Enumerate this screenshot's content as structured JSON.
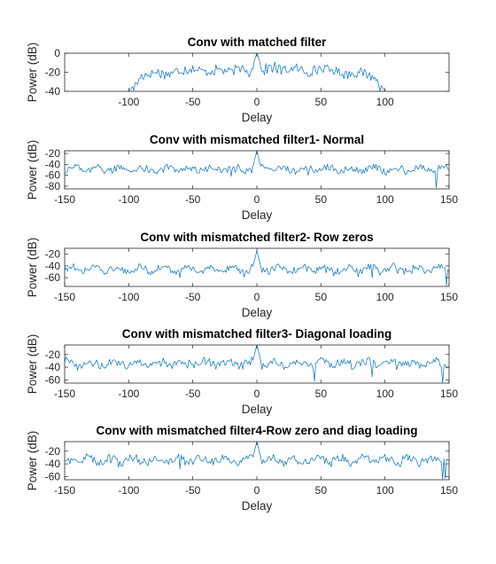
{
  "chart_data": [
    {
      "type": "line",
      "title": "Conv with matched filter",
      "xlabel": "Delay",
      "ylabel": "Power (dB)",
      "xlim": [
        -150,
        150
      ],
      "ylim": [
        -40,
        0
      ],
      "xticks": [
        -100,
        -50,
        0,
        50,
        100
      ],
      "yticks": [
        0,
        -20,
        -40
      ],
      "series": [
        {
          "x_range": [
            -100,
            100
          ],
          "peak_db": 0,
          "sidelobe_db": -22,
          "floor_db": -40,
          "points": [
            [
              -100,
              -40
            ],
            [
              -95,
              -32
            ],
            [
              -90,
              -22
            ],
            [
              -80,
              -18
            ],
            [
              -70,
              -20
            ],
            [
              -60,
              -16
            ],
            [
              -50,
              -14
            ],
            [
              -40,
              -18
            ],
            [
              -30,
              -15
            ],
            [
              -20,
              -18
            ],
            [
              -10,
              -12
            ],
            [
              -5,
              -20
            ],
            [
              0,
              0
            ],
            [
              5,
              -18
            ],
            [
              10,
              -12
            ],
            [
              20,
              -16
            ],
            [
              30,
              -14
            ],
            [
              40,
              -18
            ],
            [
              50,
              -14
            ],
            [
              60,
              -16
            ],
            [
              70,
              -20
            ],
            [
              80,
              -18
            ],
            [
              90,
              -22
            ],
            [
              95,
              -30
            ],
            [
              100,
              -40
            ]
          ]
        }
      ]
    },
    {
      "type": "line",
      "title": "Conv with mismatched filter1- Normal",
      "xlabel": "Delay",
      "ylabel": "Power (dB)",
      "xlim": [
        -150,
        150
      ],
      "ylim": [
        -85,
        -15
      ],
      "xticks": [
        -150,
        -100,
        -50,
        0,
        50,
        100,
        150
      ],
      "yticks": [
        -20,
        -40,
        -60,
        -80
      ],
      "series": [
        {
          "x_range": [
            -150,
            150
          ],
          "peak_db": -15,
          "sidelobe_db": -48,
          "floor_db": -85,
          "dips": [
            [
              140,
              -83
            ],
            [
              -20,
              -62
            ],
            [
              40,
              -60
            ]
          ]
        }
      ]
    },
    {
      "type": "line",
      "title": "Conv with mismatched filter2- Row zeros",
      "xlabel": "Delay",
      "ylabel": "Power (dB)",
      "xlim": [
        -150,
        150
      ],
      "ylim": [
        -75,
        -10
      ],
      "xticks": [
        -150,
        -100,
        -50,
        0,
        50,
        100,
        150
      ],
      "yticks": [
        -20,
        -40,
        -60
      ],
      "series": [
        {
          "x_range": [
            -150,
            150
          ],
          "peak_db": -14,
          "sidelobe_db": -45,
          "floor_db": -75,
          "dips": [
            [
              148,
              -74
            ],
            [
              -60,
              -60
            ],
            [
              90,
              -60
            ]
          ]
        }
      ]
    },
    {
      "type": "line",
      "title": "Conv with mismatched filter3- Diagonal loading",
      "xlabel": "Delay",
      "ylabel": "Power (dB)",
      "xlim": [
        -150,
        150
      ],
      "ylim": [
        -65,
        -5
      ],
      "xticks": [
        -150,
        -100,
        -50,
        0,
        50,
        100,
        150
      ],
      "yticks": [
        -20,
        -40,
        -60
      ],
      "series": [
        {
          "x_range": [
            -150,
            150
          ],
          "peak_db": -5,
          "sidelobe_db": -33,
          "floor_db": -65,
          "dips": [
            [
              45,
              -62
            ],
            [
              90,
              -55
            ],
            [
              145,
              -65
            ]
          ]
        }
      ]
    },
    {
      "type": "line",
      "title": "Conv with mismatched filter4-Row zero and diag  loading",
      "xlabel": "Delay",
      "ylabel": "Power (dB)",
      "xlim": [
        -150,
        150
      ],
      "ylim": [
        -65,
        -5
      ],
      "xticks": [
        -150,
        -100,
        -50,
        0,
        50,
        100,
        150
      ],
      "yticks": [
        -20,
        -40,
        -60
      ],
      "series": [
        {
          "x_range": [
            -150,
            150
          ],
          "peak_db": -5,
          "sidelobe_db": -33,
          "floor_db": -65,
          "dips": [
            [
              145,
              -65
            ],
            [
              147,
              -63
            ],
            [
              -60,
              -48
            ]
          ]
        }
      ]
    }
  ]
}
